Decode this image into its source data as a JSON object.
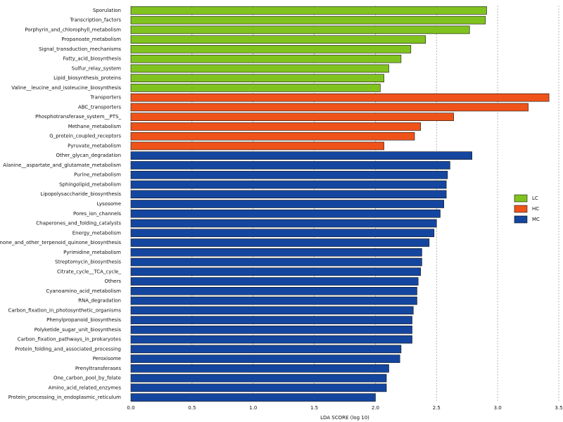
{
  "chart_data": {
    "type": "barh",
    "x_label": "LDA SCORE (log 10)",
    "xlim": [
      0,
      3.5
    ],
    "xticks": [
      {
        "value": 0,
        "label": "0.0"
      },
      0.5,
      {
        "value": 1,
        "label": "1.0"
      },
      1.5,
      {
        "value": 2,
        "label": "2.0"
      },
      2.5,
      {
        "value": 3,
        "label": "3.0"
      },
      3.5
    ],
    "grid": true,
    "legend": "right",
    "series": [
      {
        "name": "LC",
        "color": "#80c31f",
        "categories": [
          "Sporulation",
          "Transcription_factors",
          "Porphyrin_and_chlorophyll_metabolism",
          "Propanoate_metabolism",
          "Signal_transduction_mechanisms",
          "Fatty_acid_biosynthesis",
          "Sulfur_relay_system",
          "Lipid_biosynthesis_proteins",
          "Valine__leucine_and_isoleucine_biosynthesis"
        ],
        "values": [
          2.91,
          2.9,
          2.77,
          2.41,
          2.29,
          2.21,
          2.11,
          2.07,
          2.04
        ]
      },
      {
        "name": "HC",
        "color": "#f0531a",
        "categories": [
          "Transporters",
          "ABC_transporters",
          "Phosphotransferase_system__PTS_",
          "Methane_metabolism",
          "G_protein_coupled_receptors",
          "Pyruvate_metabolism"
        ],
        "values": [
          3.42,
          3.25,
          2.64,
          2.37,
          2.32,
          2.07
        ]
      },
      {
        "name": "MC",
        "color": "#1446a0",
        "categories": [
          "Other_glycan_degradation",
          "Alanine__aspartate_and_glutamate_metabolism",
          "Purine_metabolism",
          "Sphingolipid_metabolism",
          "Lipopolysaccharide_biosynthesis",
          "Lysosome",
          "Pores_ion_channels",
          "Chaperones_and_folding_catalysts",
          "Energy_metabolism",
          "Ubiquinone_and_other_terpenoid_quinone_biosynthesis",
          "Pyrimidine_metabolism",
          "Streptomycin_biosynthesis",
          "Citrate_cycle__TCA_cycle_",
          "Others",
          "Cyanoamino_acid_metabolism",
          "RNA_degradation",
          "Carbon_fixation_in_photosynthetic_organisms",
          "Phenylpropanoid_biosynthesis",
          "Polyketide_sugar_unit_biosynthesis",
          "Carbon_fixation_pathways_in_prokaryotes",
          "Protein_folding_and_associated_processing",
          "Peroxisome",
          "Prenyltransferases",
          "One_carbon_pool_by_folate",
          "Amino_acid_related_enzymes",
          "Protein_processing_in_endoplasmic_reticulum"
        ],
        "values": [
          2.79,
          2.61,
          2.59,
          2.58,
          2.58,
          2.56,
          2.53,
          2.5,
          2.48,
          2.44,
          2.38,
          2.38,
          2.37,
          2.35,
          2.34,
          2.34,
          2.31,
          2.3,
          2.3,
          2.3,
          2.21,
          2.2,
          2.11,
          2.09,
          2.09,
          2.0
        ]
      }
    ]
  }
}
